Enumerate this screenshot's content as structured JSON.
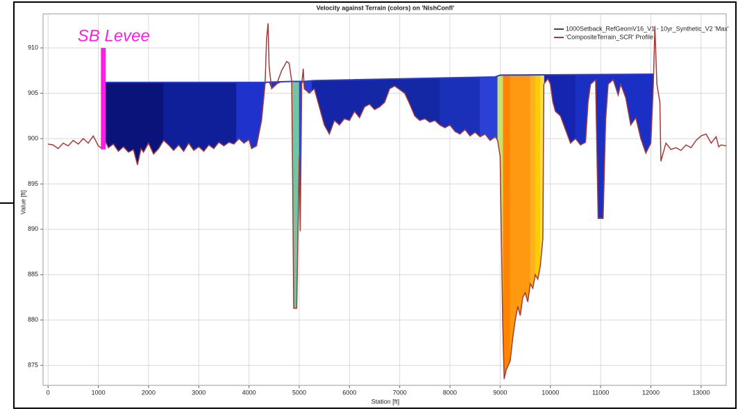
{
  "chart_data": {
    "type": "profile",
    "title": "Velocity against Terrain (colors) on 'NishConfl'",
    "x_label": "Station [ft]",
    "y_label": "Value [ft]",
    "xlim": [
      -100,
      13500
    ],
    "ylim": [
      872.8,
      913.75
    ],
    "xticks": [
      0,
      1000,
      2000,
      3000,
      4000,
      5000,
      6000,
      7000,
      8000,
      9000,
      10000,
      11000,
      12000,
      13000
    ],
    "yticks": [
      875,
      880,
      885,
      890,
      895,
      900,
      905,
      910
    ],
    "grid": true,
    "legend": "top-right",
    "series": [
      {
        "name": "1000Setback_RefGeomV16_V1 - 10yr_Synthetic_V2 'Max'",
        "color": "#2b3cc7",
        "x": [
          1130,
          4300,
          4850,
          5100,
          5300,
          8900,
          9000,
          12050
        ],
        "values": [
          906.2,
          906.2,
          906.3,
          906.3,
          906.4,
          906.8,
          907,
          907.1
        ]
      },
      {
        "name": "'CompositeTerrain_SCR' Profile",
        "color": "#a33a36",
        "x": [
          0,
          100,
          200,
          300,
          400,
          500,
          600,
          700,
          800,
          900,
          1000,
          1050,
          1100,
          1150,
          1200,
          1300,
          1400,
          1500,
          1600,
          1700,
          1780,
          1850,
          1900,
          2000,
          2100,
          2200,
          2300,
          2400,
          2500,
          2600,
          2700,
          2800,
          2900,
          3000,
          3100,
          3200,
          3300,
          3400,
          3500,
          3600,
          3700,
          3800,
          3900,
          4000,
          4050,
          4150,
          4250,
          4320,
          4350,
          4380,
          4400,
          4450,
          4550,
          4650,
          4750,
          4800,
          4850,
          4870,
          4890,
          4950,
          4970,
          5000,
          5020,
          5050,
          5080,
          5100,
          5200,
          5300,
          5400,
          5500,
          5600,
          5700,
          5800,
          5900,
          6000,
          6100,
          6200,
          6300,
          6400,
          6500,
          6600,
          6700,
          6800,
          6900,
          7000,
          7100,
          7200,
          7300,
          7400,
          7500,
          7600,
          7700,
          7800,
          7900,
          8000,
          8100,
          8200,
          8300,
          8400,
          8500,
          8600,
          8700,
          8800,
          8900,
          8950,
          9000,
          9050,
          9080,
          9120,
          9200,
          9250,
          9300,
          9350,
          9400,
          9450,
          9500,
          9550,
          9600,
          9650,
          9700,
          9750,
          9800,
          9850,
          9870,
          9950,
          10000,
          10050,
          10100,
          10200,
          10300,
          10400,
          10500,
          10600,
          10700,
          10750,
          10800,
          10900,
          10950,
          11050,
          11100,
          11150,
          11250,
          11350,
          11400,
          11500,
          11600,
          11700,
          11800,
          11900,
          12000,
          12050,
          12080,
          12120,
          12180,
          12200,
          12250,
          12300,
          12400,
          12500,
          12600,
          12700,
          12800,
          12900,
          13000,
          13100,
          13200,
          13300,
          13350,
          13400,
          13500
        ],
        "values": [
          899.4,
          899.3,
          898.9,
          899.5,
          899.2,
          899.8,
          899.4,
          900,
          899.5,
          900.3,
          899.2,
          899,
          899.7,
          899.6,
          899,
          899.4,
          898.6,
          899.1,
          898.5,
          898.8,
          897.1,
          898.9,
          898.5,
          899.5,
          898.3,
          898.9,
          899.8,
          899.3,
          898.7,
          899.3,
          898.6,
          899.5,
          898.7,
          899.1,
          898.6,
          899.3,
          898.9,
          899.6,
          899.2,
          899.6,
          899.4,
          900,
          899.5,
          899.9,
          898.9,
          899.2,
          902,
          906,
          911,
          912.7,
          908,
          905.5,
          906,
          907.5,
          908.5,
          908.3,
          906.3,
          895,
          881.3,
          881.3,
          888,
          898,
          889.8,
          906,
          907.7,
          905.5,
          905,
          905.5,
          903.5,
          901.5,
          900.5,
          902,
          901.5,
          902.2,
          902,
          903,
          902.3,
          903.5,
          903.8,
          903.2,
          903.5,
          904,
          905.5,
          905.8,
          905.4,
          905,
          903.8,
          902.5,
          902,
          902.2,
          901.8,
          902,
          901.5,
          901.2,
          901.5,
          900.8,
          900.5,
          901,
          900.3,
          900.7,
          900.2,
          900.5,
          899.8,
          900.2,
          899.8,
          898,
          880,
          873.5,
          874.5,
          875.5,
          878,
          880,
          881.5,
          880.5,
          882.5,
          883,
          882,
          884,
          883.5,
          885,
          884.5,
          886,
          889,
          906,
          906.6,
          906,
          904,
          903,
          902.5,
          901,
          899.5,
          900,
          899.3,
          899.6,
          904,
          906,
          906.5,
          891.2,
          891.2,
          902,
          906,
          906.5,
          904.8,
          906,
          904.5,
          901.5,
          902.3,
          900,
          898.4,
          899.5,
          906,
          912.4,
          906,
          904,
          897.5,
          898.5,
          899.5,
          898.8,
          899,
          898.7,
          899.3,
          899,
          899.8,
          900.3,
          900.5,
          899.5,
          900.2,
          899.1,
          899.3,
          899.2
        ]
      }
    ],
    "velocity_zones": [
      {
        "x0": 1130,
        "x1": 2300,
        "color": "#0a137a"
      },
      {
        "x0": 2300,
        "x1": 3750,
        "color": "#0f1f99"
      },
      {
        "x0": 3750,
        "x1": 4350,
        "color": "#1f33cc"
      },
      {
        "x0": 4350,
        "x1": 4850,
        "color": "#1f33cc"
      },
      {
        "x0": 4850,
        "x1": 5000,
        "color": "#72c7a2"
      },
      {
        "x0": 5000,
        "x1": 5250,
        "color": "#2a40d6"
      },
      {
        "x0": 5250,
        "x1": 6250,
        "color": "#1525a8"
      },
      {
        "x0": 6250,
        "x1": 7800,
        "color": "#1428a6"
      },
      {
        "x0": 7800,
        "x1": 8600,
        "color": "#1a30b8"
      },
      {
        "x0": 8600,
        "x1": 8950,
        "color": "#2a40d6"
      },
      {
        "x0": 8950,
        "x1": 9060,
        "color": "#c8e070"
      },
      {
        "x0": 9060,
        "x1": 9200,
        "color": "#ff8400"
      },
      {
        "x0": 9200,
        "x1": 9600,
        "color": "#ff9a10"
      },
      {
        "x0": 9600,
        "x1": 9700,
        "color": "#ffb020"
      },
      {
        "x0": 9700,
        "x1": 9800,
        "color": "#ffcc00"
      },
      {
        "x0": 9800,
        "x1": 9880,
        "color": "#ffe040"
      },
      {
        "x0": 9880,
        "x1": 10500,
        "color": "#1525b0"
      },
      {
        "x0": 10500,
        "x1": 12100,
        "color": "#1a2fc4"
      }
    ],
    "annotation": {
      "text": "SB Levee",
      "x": 1100,
      "y_top": 910,
      "y_bottom": 898.8,
      "color": "#ff1ee6"
    }
  }
}
